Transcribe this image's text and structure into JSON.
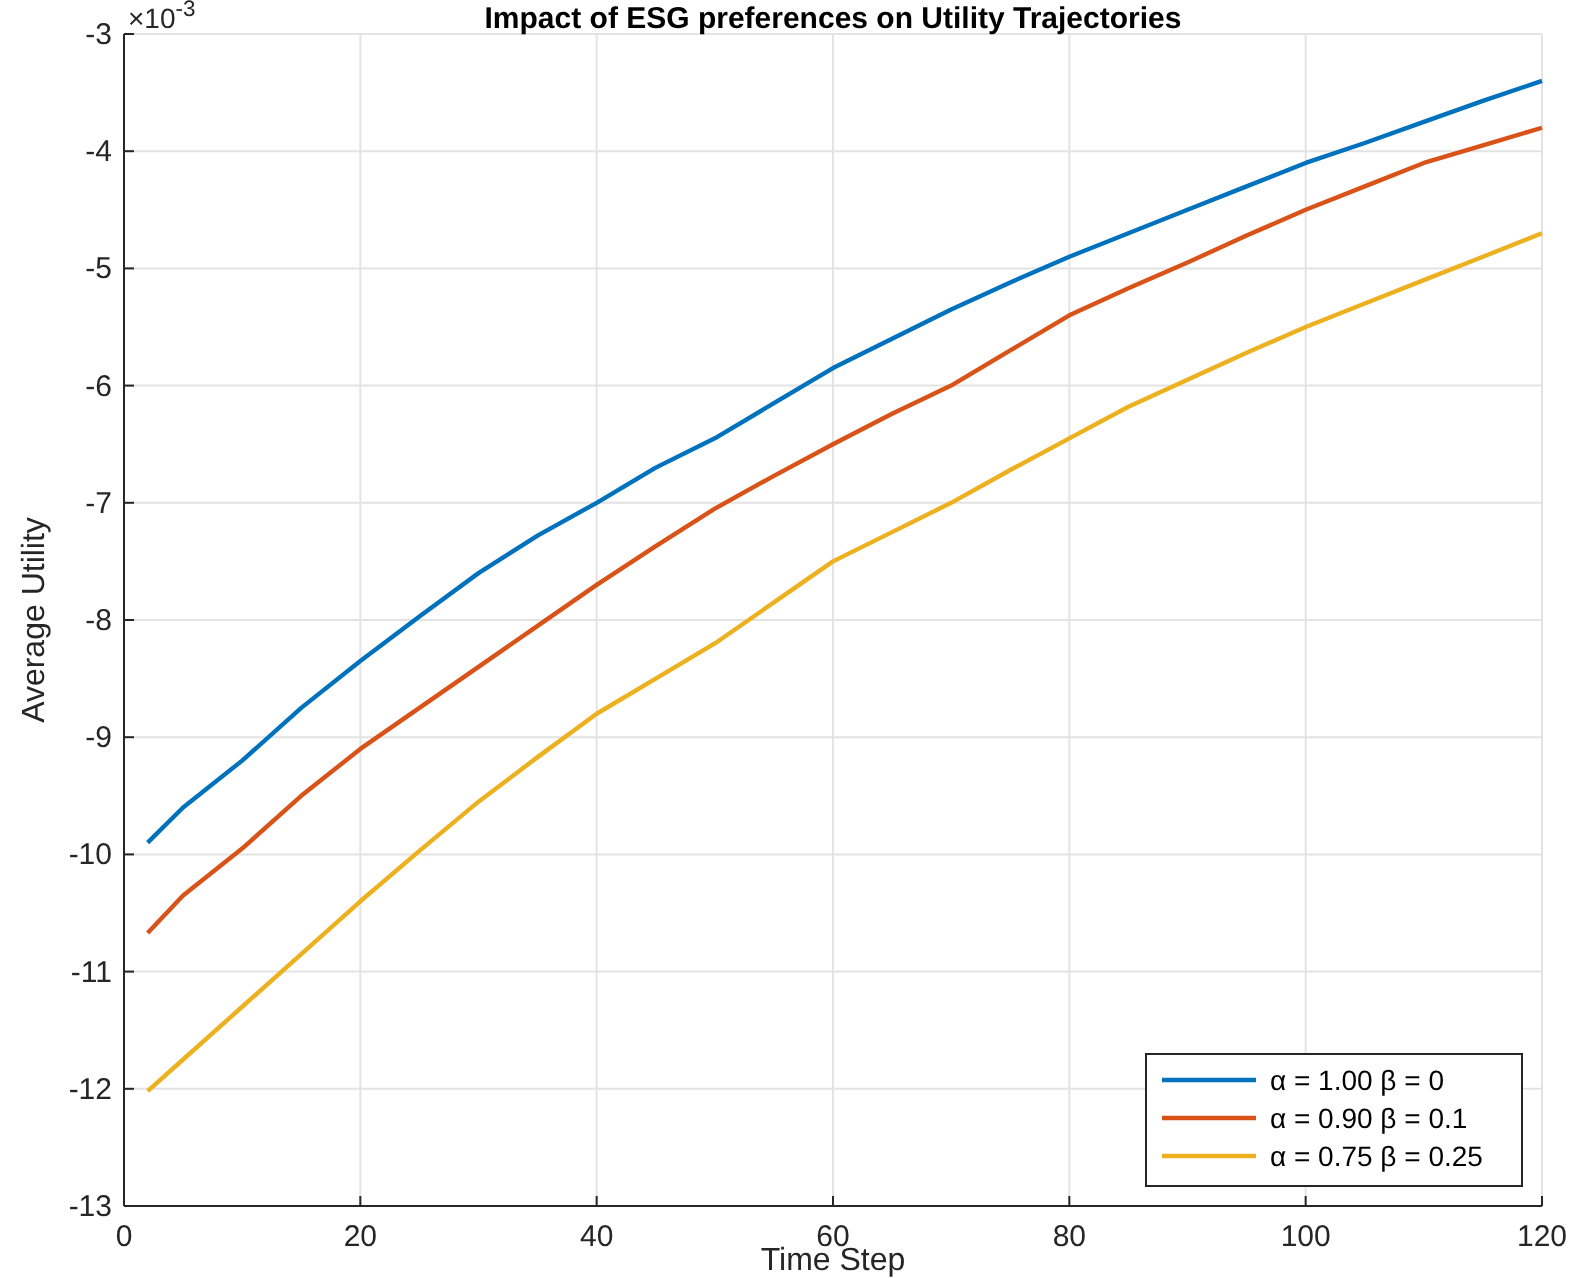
{
  "chart_data": {
    "type": "line",
    "title": "Impact of ESG preferences on Utility Trajectories",
    "xlabel": "Time Step",
    "ylabel": "Average Utility",
    "annotations": [
      "×10$^{-3}$"
    ],
    "x": [
      2,
      5,
      10,
      15,
      20,
      25,
      30,
      35,
      40,
      45,
      50,
      55,
      60,
      65,
      70,
      75,
      80,
      85,
      90,
      95,
      100,
      105,
      110,
      115,
      120
    ],
    "series": [
      {
        "name": "α = 1.00 β = 0",
        "color": "#0072bd",
        "values": [
          -9.9,
          -9.6,
          -9.2,
          -8.75,
          -8.35,
          -7.97,
          -7.6,
          -7.28,
          -7.0,
          -6.7,
          -6.45,
          -6.15,
          -5.85,
          -5.6,
          -5.35,
          -5.12,
          -4.9,
          -4.7,
          -4.5,
          -4.3,
          -4.1,
          -3.93,
          -3.75,
          -3.57,
          -3.4
        ]
      },
      {
        "name": "α = 0.90 β = 0.1",
        "color": "#d95319",
        "values": [
          -10.67,
          -10.35,
          -9.95,
          -9.5,
          -9.1,
          -8.75,
          -8.4,
          -8.05,
          -7.7,
          -7.37,
          -7.05,
          -6.77,
          -6.5,
          -6.24,
          -6.0,
          -5.7,
          -5.4,
          -5.17,
          -4.95,
          -4.72,
          -4.5,
          -4.3,
          -4.1,
          -3.95,
          -3.8
        ]
      },
      {
        "name": "α = 0.75 β = 0.25",
        "color": "#edb120",
        "values": [
          -12.02,
          -11.75,
          -11.3,
          -10.85,
          -10.4,
          -9.97,
          -9.55,
          -9.17,
          -8.8,
          -8.5,
          -8.2,
          -7.85,
          -7.5,
          -7.25,
          -7.0,
          -6.72,
          -6.45,
          -6.18,
          -5.95,
          -5.72,
          -5.5,
          -5.3,
          -5.1,
          -4.9,
          -4.7
        ]
      }
    ],
    "xlim": [
      0,
      120
    ],
    "xticks": [
      0,
      20,
      40,
      60,
      80,
      100,
      120
    ],
    "ylim": [
      -13,
      -3
    ],
    "yticks": [
      -13,
      -12,
      -11,
      -10,
      -9,
      -8,
      -7,
      -6,
      -5,
      -4,
      -3
    ],
    "grid": true,
    "legend": "bottom right",
    "line_style": "solid",
    "marker": "none"
  }
}
